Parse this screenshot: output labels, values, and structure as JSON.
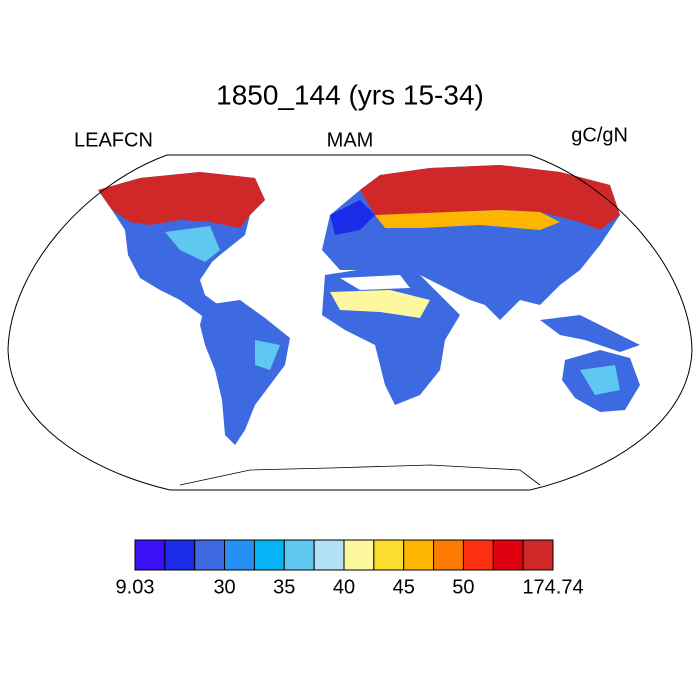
{
  "title": "1850_144 (yrs 15-34)",
  "left_label": "LEAFCN",
  "center_label": "MAM",
  "right_label": "gC/gN",
  "colorbar": {
    "colors": [
      "#3b10f5",
      "#1a2ce8",
      "#3d6ae0",
      "#2690f5",
      "#06b4f5",
      "#5ec8f0",
      "#b2e0f5",
      "#fdf8a0",
      "#fddc30",
      "#fcb600",
      "#fc7a00",
      "#fc3010",
      "#e00010",
      "#d02828"
    ],
    "boundaries": [
      9.03,
      null,
      null,
      30,
      null,
      35,
      null,
      40,
      null,
      45,
      null,
      50,
      null,
      null,
      174.74
    ]
  }
}
